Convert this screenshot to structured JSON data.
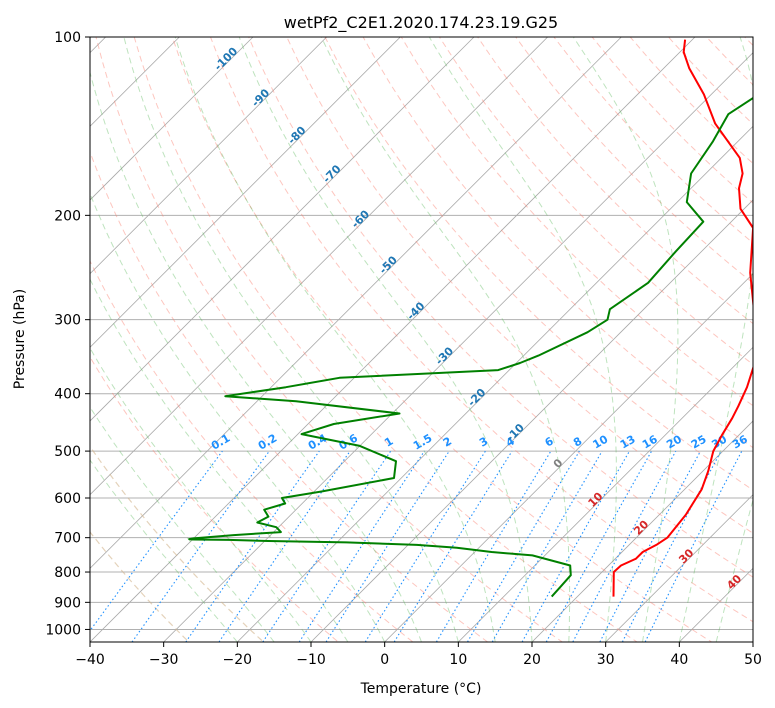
{
  "chart_data": {
    "type": "line",
    "title": "wetPf2_C2E1.2020.174.23.19.G25",
    "xlabel": "Temperature (°C)",
    "ylabel": "Pressure (hPa)",
    "xlim": [
      -40,
      50
    ],
    "ylim": [
      1050,
      100
    ],
    "y_scale": "log",
    "grid": true,
    "x_ticks": [
      "−40",
      "−30",
      "−20",
      "−10",
      "0",
      "10",
      "20",
      "30",
      "40",
      "50"
    ],
    "y_ticks": [
      "100",
      "200",
      "300",
      "400",
      "500",
      "600",
      "700",
      "800",
      "900",
      "1000"
    ],
    "series": [
      {
        "name": "",
        "color": "#ff0000",
        "points": [
          [
            24.9,
            880
          ],
          [
            21.6,
            800
          ],
          [
            21.7,
            780
          ],
          [
            22.8,
            760
          ],
          [
            22.8,
            740
          ],
          [
            23.7,
            720
          ],
          [
            24.2,
            700
          ],
          [
            23.6,
            640
          ],
          [
            22.3,
            580
          ],
          [
            20.7,
            540
          ],
          [
            18.7,
            500
          ],
          [
            17.7,
            470
          ],
          [
            16.8,
            440
          ],
          [
            16.0,
            420
          ],
          [
            14.6,
            390
          ],
          [
            12.7,
            360
          ],
          [
            6.5,
            300
          ],
          [
            -0.5,
            250
          ],
          [
            -6.2,
            210
          ],
          [
            -10.5,
            195
          ],
          [
            -13.5,
            180
          ],
          [
            -15.0,
            170
          ],
          [
            -17.5,
            160
          ],
          [
            -25.5,
            140
          ],
          [
            -31.0,
            125
          ],
          [
            -36.5,
            113
          ],
          [
            -39.5,
            106
          ],
          [
            -41.0,
            101
          ]
        ]
      },
      {
        "name": "",
        "color": "#008000",
        "points": [
          [
            16.5,
            880
          ],
          [
            16.4,
            850
          ],
          [
            16.2,
            810
          ],
          [
            14.8,
            780
          ],
          [
            8.3,
            750
          ],
          [
            2.3,
            740
          ],
          [
            -3.0,
            728
          ],
          [
            -8.8,
            720
          ],
          [
            -18.7,
            713
          ],
          [
            -29.5,
            709
          ],
          [
            -35.0,
            706
          ],
          [
            -40.0,
            705
          ],
          [
            -40.5,
            704
          ],
          [
            -40.0,
            702
          ],
          [
            -35.0,
            693
          ],
          [
            -29.0,
            685
          ],
          [
            -30.3,
            672
          ],
          [
            -33.5,
            660
          ],
          [
            -32.8,
            645
          ],
          [
            -34.3,
            628
          ],
          [
            -32.3,
            613
          ],
          [
            -33.5,
            600
          ],
          [
            -29.0,
            585
          ],
          [
            -21.0,
            555
          ],
          [
            -23.0,
            520
          ],
          [
            -30.0,
            490
          ],
          [
            -39.5,
            468
          ],
          [
            -36.5,
            450
          ],
          [
            -29.0,
            432
          ],
          [
            -44.7,
            412
          ],
          [
            -55.0,
            404
          ],
          [
            -48.0,
            390
          ],
          [
            -42.0,
            376
          ],
          [
            -21.5,
            365
          ],
          [
            -19.5,
            355
          ],
          [
            -18.0,
            345
          ],
          [
            -14.5,
            315
          ],
          [
            -13.5,
            300
          ],
          [
            -14.6,
            288
          ],
          [
            -13.0,
            260
          ],
          [
            -13.5,
            230
          ],
          [
            -13.8,
            205
          ],
          [
            -18.7,
            190
          ],
          [
            -22.0,
            170
          ],
          [
            -23.4,
            150
          ],
          [
            -25.0,
            135
          ],
          [
            -22.8,
            120
          ],
          [
            -20.6,
            112
          ],
          [
            -18.0,
            100
          ]
        ]
      }
    ],
    "isotherm_labels": [
      "-100",
      "-90",
      "-80",
      "-70",
      "-60",
      "-50",
      "-40",
      "-30",
      "-20",
      "-10"
    ],
    "mixing_ratio_labels": [
      "0.1",
      "0.2",
      "0.4",
      "0.6",
      "1",
      "1.5",
      "2",
      "3",
      "4",
      "6",
      "8",
      "10",
      "13",
      "16",
      "20",
      "25",
      "30",
      "36"
    ],
    "dry_adiabat_labels": [
      "0",
      "10",
      "20",
      "30",
      "40"
    ],
    "colors": {
      "temperature": "#ff0000",
      "dewpoint": "#008000",
      "isotherm": "#7f7f7f",
      "isotherm_label": "#1f77b4",
      "mixing_ratio": "#1e90ff",
      "dry_adiabat": "#fa8072",
      "moist_adiabat": "#5cb85c",
      "dry_adiabat_label": "#d62728",
      "zero_label": "#808080"
    }
  }
}
